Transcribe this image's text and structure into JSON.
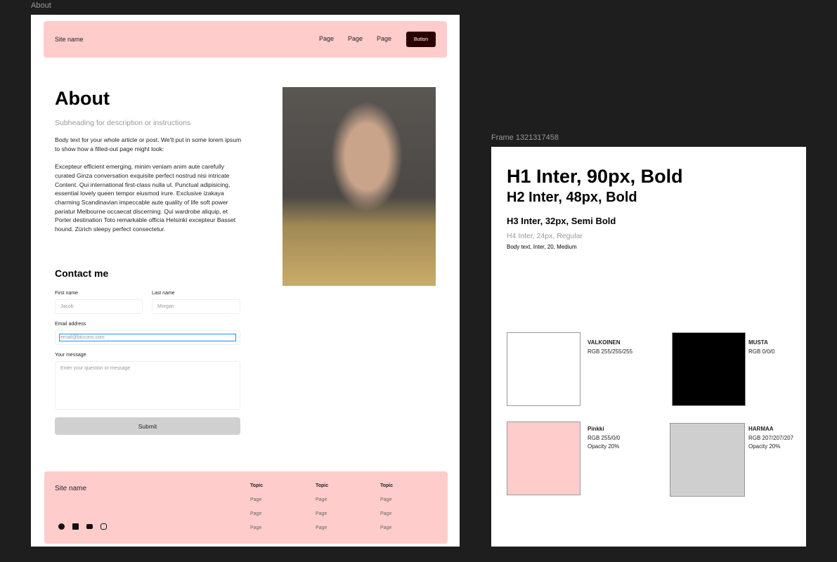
{
  "canvas": {
    "frame1_label": "About",
    "frame2_label": "Frame 1321317458"
  },
  "nav": {
    "site_name": "Site name",
    "pages": [
      "Page",
      "Page",
      "Page"
    ],
    "button": "Button"
  },
  "about": {
    "title": "About",
    "subheading": "Subheading for description or instructions",
    "body1": "Body text for your whole article or post. We'll put in some lorem ipsum to show how a filled-out page might look:",
    "body2": "Excepteur efficient emerging, minim veniam anim aute carefully curated Ginza conversation exquisite perfect nostrud nisi intricate Content. Qui  international first-class nulla ut. Punctual adipisicing, essential lovely queen tempor eiusmod irure. Exclusive izakaya charming Scandinavian impeccable aute quality of life soft power pariatur Melbourne occaecat discerning. Qui wardrobe aliquip, et Porter destination Toto remarkable officia Helsinki excepteur Basset hound. Zürich sleepy perfect consectetur."
  },
  "form": {
    "title": "Contact me",
    "first_label": "First name",
    "first_placeholder": "Jacob",
    "last_label": "Last name",
    "last_placeholder": "Morgan",
    "email_label": "Email address",
    "email_placeholder": "email@biccons.com",
    "message_label": "Your message",
    "message_placeholder": "Enter your question or message",
    "submit": "Submit"
  },
  "footer": {
    "site_name": "Site name",
    "social_icons": [
      "facebook-icon",
      "linkedin-icon",
      "youtube-icon",
      "instagram-icon"
    ],
    "columns": [
      {
        "topic": "Topic",
        "pages": [
          "Page",
          "Page",
          "Page"
        ]
      },
      {
        "topic": "Topic",
        "pages": [
          "Page",
          "Page",
          "Page"
        ]
      },
      {
        "topic": "Topic",
        "pages": [
          "Page",
          "Page",
          "Page"
        ]
      }
    ]
  },
  "styles": {
    "h1": "H1 Inter, 90px, Bold",
    "h2": "H2 Inter, 48px, Bold",
    "h3": "H3 Inter, 32px, Semi Bold",
    "h4": "H4 Inter, 24px, Regular",
    "body": "Body text, Inter, 20, Medium",
    "swatches": [
      {
        "name": "VALKOINEN",
        "rgb": "RGB 255/255/255",
        "opacity": "",
        "color": "#ffffff"
      },
      {
        "name": "MUSTA",
        "rgb": "RGB 0/0/0",
        "opacity": "",
        "color": "#000000"
      },
      {
        "name": "Pinkki",
        "rgb": "RGB 255/0/0",
        "opacity": "Opacity 20%",
        "color": "#ffcccc"
      },
      {
        "name": "HARMAA",
        "rgb": "RGB 207/207/207",
        "opacity": "Opacity 20%",
        "color": "#cfcfcf"
      }
    ]
  },
  "colors": {
    "accent_pink": "#ffcccc",
    "button_dark": "#2a0000",
    "submit_gray": "#d0d0d0",
    "focus_blue": "#1e90ff"
  }
}
